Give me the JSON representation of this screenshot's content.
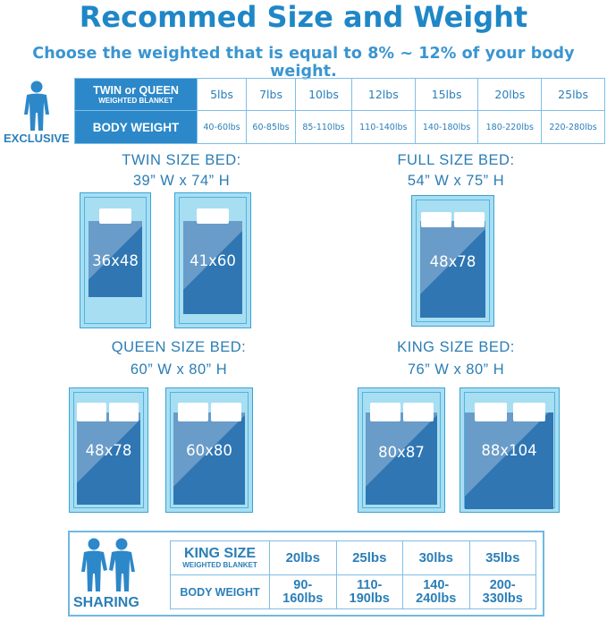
{
  "title": "Recommed Size and Weight",
  "subtitle": "Choose the weighted that is equal to 8% ~ 12% of your body weight.",
  "exclusive": {
    "caption": "EXCLUSIVE",
    "header_main": "TWIN or QUEEN",
    "header_sub": "WEIGHTED BLANKET",
    "body_label": "BODY WEIGHT",
    "weights": [
      "5lbs",
      "7lbs",
      "10lbs",
      "12lbs",
      "15lbs",
      "20lbs",
      "25lbs"
    ],
    "body_weights": [
      "40-60lbs",
      "60-85lbs",
      "85-110lbs",
      "110-140lbs",
      "140-180lbs",
      "180-220lbs",
      "220-280lbs"
    ]
  },
  "beds": {
    "twin": {
      "label": "TWIN SIZE BED:",
      "dims": "39”  W x 74”  H",
      "sizes": [
        "36x48",
        "41x60"
      ]
    },
    "full": {
      "label": "FULL SIZE BED:",
      "dims": "54”  W x 75”  H",
      "sizes": [
        "48x78"
      ]
    },
    "queen": {
      "label": "QUEEN SIZE BED:",
      "dims": "60”  W x 80”  H",
      "sizes": [
        "48x78",
        "60x80"
      ]
    },
    "king": {
      "label": "KING SIZE BED:",
      "dims": "76”  W x 80”  H",
      "sizes": [
        "80x87",
        "88x104"
      ]
    }
  },
  "sharing": {
    "caption": "SHARING",
    "header_main": "KING SIZE",
    "header_sub": "WEIGHTED BLANKET",
    "body_label": "BODY WEIGHT",
    "weights": [
      "20lbs",
      "25lbs",
      "30lbs",
      "35lbs"
    ],
    "body_weights": [
      [
        "90-",
        "160lbs"
      ],
      [
        "110-",
        "190lbs"
      ],
      [
        "140-",
        "240lbs"
      ],
      [
        "200-",
        "330lbs"
      ]
    ]
  },
  "colors": {
    "title": "#1f87c7",
    "header_bg": "#2c88c9",
    "blanket": "#2f76b3",
    "bed": "#a8def2"
  }
}
